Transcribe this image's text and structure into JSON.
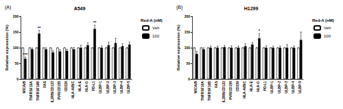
{
  "chart_data": [
    {
      "type": "bar",
      "label": "(A)",
      "title": "A549",
      "ylabel": "Relative expression (%)",
      "categories": [
        "MICA/B",
        "TNFRSF10A",
        "TNFRSF10B",
        "FAS",
        "IL2RB/CD122",
        "PVR/CD155",
        "CD226",
        "HLA-A/B/C",
        "HLA-E",
        "HLA-G",
        "PD-L1",
        "ULBP-1",
        "ULBP-2",
        "ULBP-3",
        "ULBP-4",
        "ULBP-5"
      ],
      "series": [
        {
          "name": "Veh",
          "color": "#ffffff",
          "values": [
            100,
            100,
            100,
            100,
            100,
            100,
            100,
            100,
            100,
            100,
            100,
            100,
            100,
            100,
            100,
            100
          ],
          "errors": [
            0,
            0,
            0,
            0,
            0,
            0,
            0,
            0,
            0,
            0,
            0,
            0,
            0,
            0,
            0,
            0
          ]
        },
        {
          "name": "100",
          "color": "#000000",
          "values": [
            65,
            95,
            145,
            95,
            85,
            88,
            90,
            95,
            100,
            108,
            160,
            100,
            108,
            115,
            105,
            110
          ],
          "errors": [
            5,
            4,
            10,
            5,
            5,
            6,
            5,
            6,
            8,
            8,
            12,
            6,
            10,
            15,
            8,
            8
          ]
        }
      ],
      "annotations": [
        {
          "category": "MICA/B",
          "series": "100",
          "text": "***"
        },
        {
          "category": "TNFRSF10B",
          "series": "100",
          "text": "**"
        },
        {
          "category": "PD-L1",
          "series": "100",
          "text": "**"
        }
      ],
      "ylim": [
        0,
        200
      ],
      "yticks": [
        0,
        50,
        100,
        150,
        200
      ],
      "grid": false,
      "legend": "right",
      "legend_title": "Red-A (nM)"
    },
    {
      "type": "bar",
      "label": "(B)",
      "title": "H1299",
      "ylabel": "Relative expression (%)",
      "categories": [
        "MICA/B",
        "TNFRSF10A",
        "TNFRSF10B",
        "FAS",
        "IL2RB/CD122",
        "PVR/CD155",
        "CD226",
        "HLA-A/B/C",
        "HLA-E",
        "HLA-G",
        "PD-L1",
        "ULBP-1",
        "ULBP-2",
        "ULBP-3",
        "ULBP-4",
        "ULBP-5"
      ],
      "series": [
        {
          "name": "Veh",
          "color": "#ffffff",
          "values": [
            100,
            100,
            100,
            100,
            100,
            100,
            100,
            100,
            100,
            100,
            100,
            100,
            100,
            100,
            100,
            100
          ],
          "errors": [
            0,
            0,
            0,
            0,
            0,
            0,
            0,
            0,
            0,
            0,
            0,
            0,
            0,
            0,
            0,
            0
          ]
        },
        {
          "name": "100",
          "color": "#000000",
          "values": [
            80,
            95,
            100,
            100,
            102,
            100,
            100,
            105,
            110,
            130,
            100,
            100,
            100,
            100,
            100,
            125
          ],
          "errors": [
            8,
            5,
            5,
            5,
            5,
            6,
            5,
            8,
            6,
            15,
            6,
            5,
            5,
            10,
            5,
            25
          ]
        }
      ],
      "annotations": [
        {
          "category": "HLA-G",
          "series": "100",
          "text": "*"
        }
      ],
      "ylim": [
        0,
        200
      ],
      "yticks": [
        0,
        50,
        100,
        150,
        200
      ],
      "grid": false,
      "legend": "right",
      "legend_title": "Red-A (nM)"
    }
  ]
}
